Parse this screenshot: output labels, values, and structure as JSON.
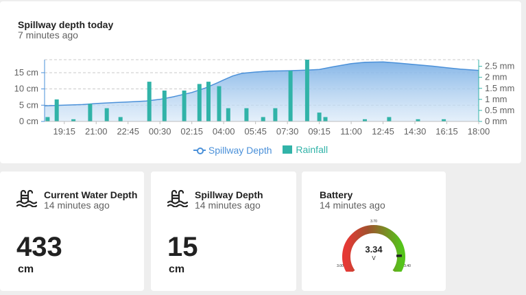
{
  "chart_card": {
    "title": "Spillway depth today",
    "subtitle": "7 minutes ago",
    "legend": {
      "line_label": "Spillway Depth",
      "bar_label": "Rainfall"
    }
  },
  "chart_data": {
    "type": "bar",
    "x_labels": [
      "19:15",
      "21:00",
      "22:45",
      "00:30",
      "02:15",
      "04:00",
      "05:45",
      "07:30",
      "09:15",
      "11:00",
      "12:45",
      "14:30",
      "16:15",
      "18:00"
    ],
    "x_time_range": [
      "18:10",
      "18:00"
    ],
    "series": [
      {
        "name": "Spillway Depth",
        "type": "area",
        "axis": "left",
        "unit": "cm",
        "x": [
          "18:10",
          "19:15",
          "20:15",
          "21:00",
          "22:00",
          "22:45",
          "23:45",
          "00:30",
          "01:15",
          "02:15",
          "03:00",
          "03:40",
          "04:00",
          "04:30",
          "05:00",
          "05:45",
          "06:30",
          "07:30",
          "08:30",
          "09:15",
          "10:00",
          "11:00",
          "11:45",
          "12:45",
          "13:30",
          "14:30",
          "15:30",
          "16:15",
          "17:00",
          "18:00"
        ],
        "values": [
          4.8,
          5.0,
          5.2,
          5.5,
          5.8,
          6.0,
          6.3,
          6.8,
          7.6,
          8.9,
          10.3,
          11.9,
          12.8,
          14.0,
          14.8,
          15.2,
          15.5,
          15.6,
          15.8,
          16.0,
          16.8,
          17.8,
          18.2,
          18.3,
          18.0,
          17.5,
          17.0,
          16.5,
          16.1,
          15.7
        ]
      },
      {
        "name": "Rainfall",
        "type": "bar",
        "axis": "right",
        "unit": "mm",
        "x": [
          "18:20",
          "18:50",
          "19:45",
          "20:40",
          "21:35",
          "22:20",
          "23:55",
          "00:45",
          "01:50",
          "02:40",
          "03:10",
          "03:45",
          "04:15",
          "05:15",
          "06:10",
          "06:50",
          "07:40",
          "08:35",
          "09:15",
          "09:35",
          "11:45",
          "13:05",
          "14:40",
          "16:05"
        ],
        "values": [
          0.2,
          1.0,
          0.1,
          0.8,
          0.6,
          0.2,
          1.8,
          1.4,
          1.4,
          1.7,
          1.8,
          1.6,
          0.6,
          0.6,
          0.2,
          0.6,
          2.3,
          2.8,
          0.4,
          0.2,
          0.1,
          0.2,
          0.1,
          0.1
        ]
      }
    ],
    "y_left": {
      "ticks": [
        "0 cm",
        "5 cm",
        "10 cm",
        "15 cm"
      ],
      "values": [
        0,
        5,
        10,
        15
      ],
      "ylim": [
        0,
        19
      ]
    },
    "y_right": {
      "ticks": [
        "0 mm",
        "0.5 mm",
        "1 mm",
        "1.5 mm",
        "2 mm",
        "2.5 mm"
      ],
      "values": [
        0,
        0.5,
        1,
        1.5,
        2,
        2.5
      ],
      "ylim": [
        0,
        2.8
      ]
    },
    "grid": true,
    "legend_position": "bottom"
  },
  "water_card": {
    "title": "Current Water Depth",
    "subtitle": "14 minutes ago",
    "value": "433",
    "unit": "cm",
    "icon": "pool-icon"
  },
  "spill_card": {
    "title": "Spillway Depth",
    "subtitle": "14 minutes ago",
    "value": "15",
    "unit": "cm",
    "icon": "pool-icon"
  },
  "battery_card": {
    "title": "Battery",
    "subtitle": "14 minutes ago",
    "gauge": {
      "value": "3.34",
      "unit": "V",
      "min": "3.00",
      "max": "3.40",
      "mid": "3.70",
      "value_num": 3.34,
      "min_num": 3.0,
      "max_num": 3.4
    }
  },
  "colors": {
    "line": "#4a90d9",
    "area": "#8bbbe9",
    "bar": "#31b3a8",
    "gauge_low": "#e53935",
    "gauge_high": "#55c31b"
  }
}
